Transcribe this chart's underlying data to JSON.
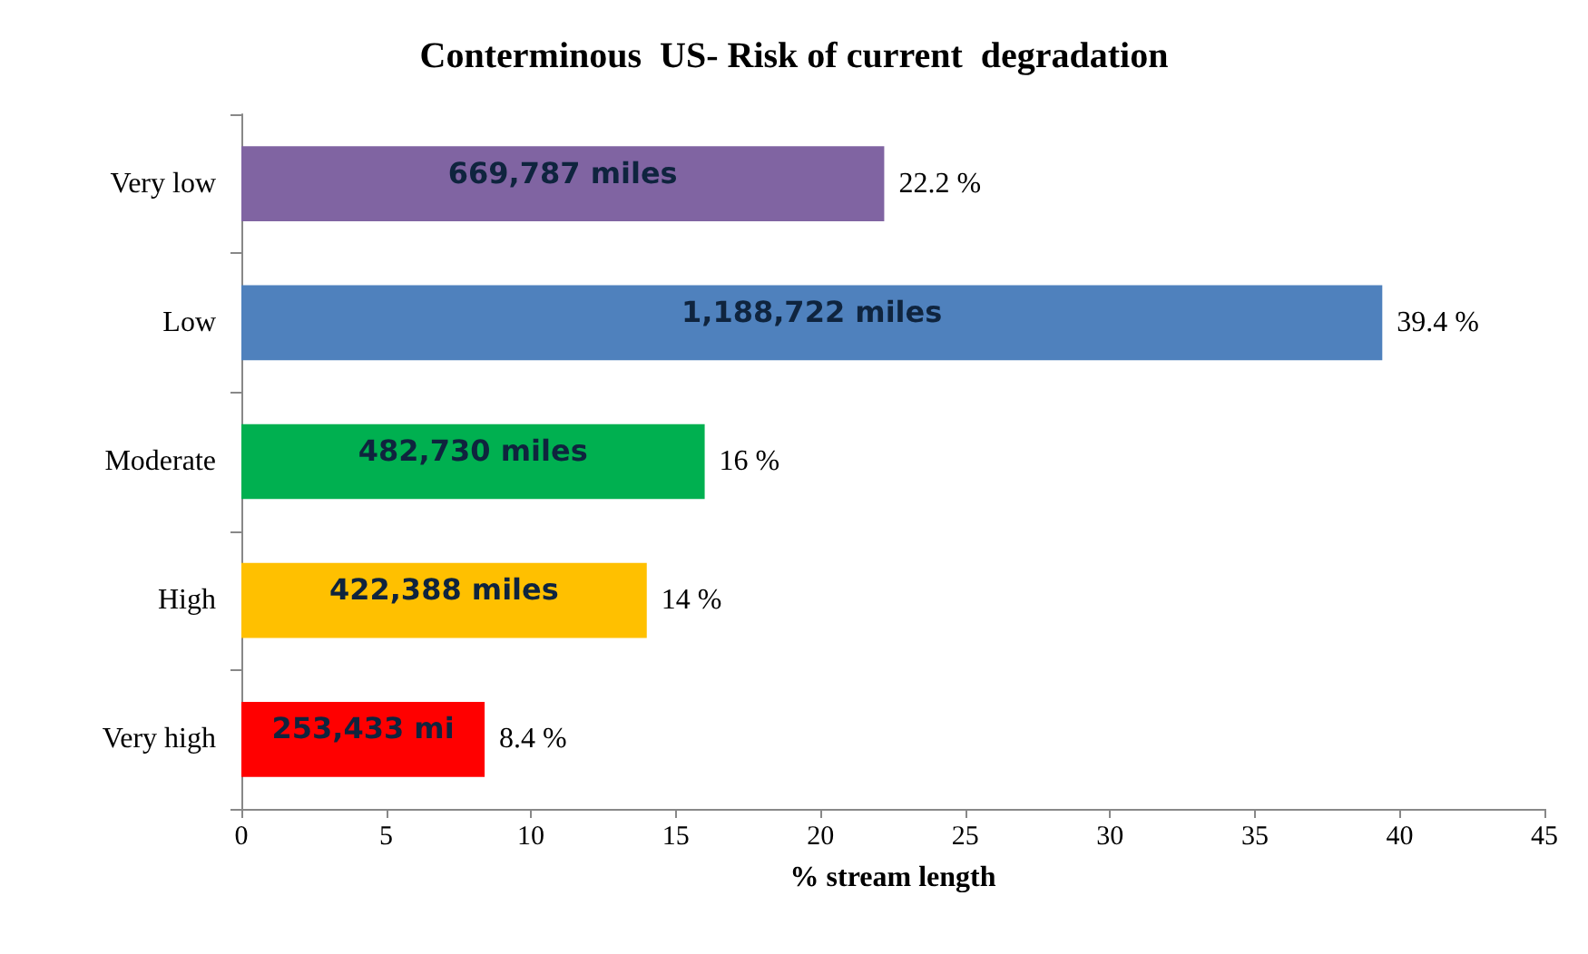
{
  "chart_data": {
    "type": "bar",
    "orientation": "horizontal",
    "title": "Conterminous  US- Risk of current  degradation",
    "xlabel": "% stream length",
    "categories": [
      "Very low",
      "Low",
      "Moderate",
      "High",
      "Very high"
    ],
    "values": [
      22.2,
      39.4,
      16,
      14,
      8.4
    ],
    "colors": [
      "#8064a2",
      "#4f81bd",
      "#00b050",
      "#ffc000",
      "#ff0000"
    ],
    "value_labels": [
      "22.2 %",
      "39.4 %",
      "16 %",
      "14 %",
      "8.4 %"
    ],
    "annotations": [
      "669,787 miles",
      "1,188,722 miles",
      "482,730 miles",
      "422,388 miles",
      "253,433 mi"
    ],
    "xlim": [
      0,
      45
    ],
    "xticks": [
      0,
      5,
      10,
      15,
      20,
      25,
      30,
      35,
      40,
      45
    ],
    "grid": false
  }
}
